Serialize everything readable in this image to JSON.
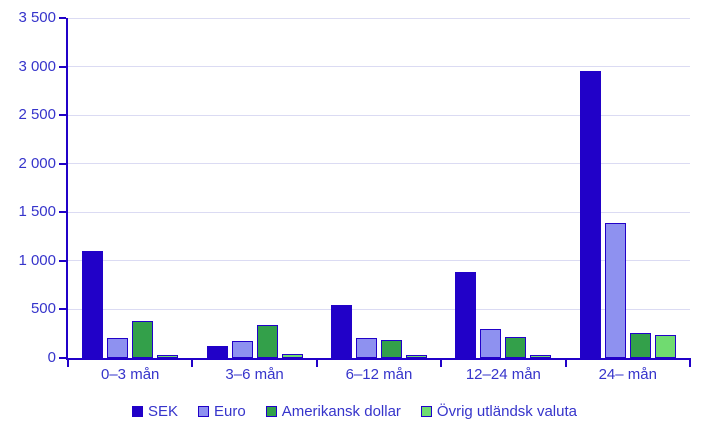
{
  "chart_data": {
    "type": "bar",
    "title": "",
    "xlabel": "",
    "ylabel": "",
    "categories": [
      "0–3 mån",
      "3–6 mån",
      "6–12 mån",
      "12–24 mån",
      "24– mån"
    ],
    "series": [
      {
        "name": "SEK",
        "color": "#2101c8",
        "values": [
          1100,
          120,
          545,
          890,
          2950
        ]
      },
      {
        "name": "Euro",
        "color": "#8e91f0",
        "values": [
          210,
          175,
          210,
          300,
          1390
        ]
      },
      {
        "name": "Amerikansk dollar",
        "color": "#33a04a",
        "values": [
          380,
          340,
          185,
          215,
          260
        ]
      },
      {
        "name": "Övrig utländsk valuta",
        "color": "#70db70",
        "values": [
          35,
          45,
          25,
          30,
          240
        ]
      }
    ],
    "ylim": [
      0,
      3500
    ],
    "ytick_step": 500,
    "ytick_labels": [
      "0",
      "500",
      "1 000",
      "1 500",
      "2 000",
      "2 500",
      "3 000",
      "3 500"
    ],
    "grid": true,
    "legend_position": "bottom"
  },
  "colors": {
    "background": "#ffffff",
    "axis": "#2101c8",
    "bar_border": "#2101c8",
    "gridline": "#dbdbf3",
    "text": "#3634cb"
  }
}
